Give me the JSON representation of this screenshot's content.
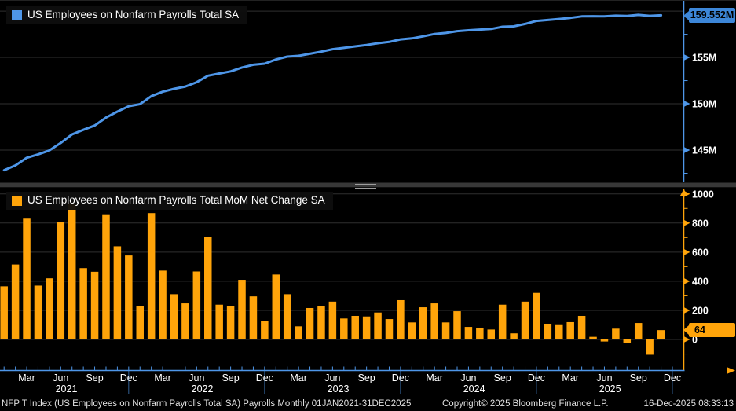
{
  "colors": {
    "background": "#000000",
    "grid": "#2f2f2f",
    "blue": "#4e96e8",
    "blue_badge": "#3d87d9",
    "orange": "#ffa40a",
    "text": "#ffffff",
    "footer_text": "#e2e2e2",
    "divider": "#383838"
  },
  "footer": {
    "source_line": "NFP T Index (US Employees on Nonfarm Payrolls Total SA) Payrolls Monthly 01JAN2021-31DEC2025",
    "copyright": "Copyright© 2025 Bloomberg Finance L.P.",
    "timestamp": "16-Dec-2025 08:33:13"
  },
  "chart_data": {
    "type": "multi-panel",
    "months": [
      "2021-01",
      "2021-02",
      "2021-03",
      "2021-04",
      "2021-05",
      "2021-06",
      "2021-07",
      "2021-08",
      "2021-09",
      "2021-10",
      "2021-11",
      "2021-12",
      "2022-01",
      "2022-02",
      "2022-03",
      "2022-04",
      "2022-05",
      "2022-06",
      "2022-07",
      "2022-08",
      "2022-09",
      "2022-10",
      "2022-11",
      "2022-12",
      "2023-01",
      "2023-02",
      "2023-03",
      "2023-04",
      "2023-05",
      "2023-06",
      "2023-07",
      "2023-08",
      "2023-09",
      "2023-10",
      "2023-11",
      "2023-12",
      "2024-01",
      "2024-02",
      "2024-03",
      "2024-04",
      "2024-05",
      "2024-06",
      "2024-07",
      "2024-08",
      "2024-09",
      "2024-10",
      "2024-11",
      "2024-12",
      "2025-01",
      "2025-02",
      "2025-03",
      "2025-04",
      "2025-05",
      "2025-06",
      "2025-07",
      "2025-08",
      "2025-09",
      "2025-10",
      "2025-11"
    ],
    "xaxis": {
      "month_labels": [
        "Mar",
        "Jun",
        "Sep",
        "Dec"
      ],
      "year_labels": [
        "2021",
        "2022",
        "2023",
        "2024",
        "2025"
      ]
    },
    "panels": [
      {
        "type": "line",
        "name": "US Employees on Nonfarm Payrolls Total SA",
        "unit": "millions",
        "last_value_label": "159.552M",
        "ylim": [
          141.5,
          161.1
        ],
        "gridlines": [
          160,
          155,
          150,
          145
        ],
        "yticks": [
          155,
          150,
          145
        ],
        "ytick_labels": [
          "155M",
          "150M",
          "145M"
        ],
        "minor_ticks": [
          157.5,
          152.5,
          147.5,
          142.5
        ],
        "values": [
          142.828,
          143.343,
          144.173,
          144.543,
          144.963,
          145.768,
          146.698,
          147.188,
          147.653,
          148.513,
          149.153,
          149.73,
          149.96,
          150.828,
          151.301,
          151.612,
          151.86,
          152.327,
          153.029,
          153.268,
          153.498,
          153.908,
          154.204,
          154.33,
          154.776,
          155.087,
          155.177,
          155.393,
          155.623,
          155.883,
          156.027,
          156.189,
          156.347,
          156.532,
          156.672,
          156.942,
          157.059,
          157.28,
          157.528,
          157.645,
          157.839,
          157.925,
          158.006,
          158.074,
          158.313,
          158.355,
          158.615,
          158.935,
          159.043,
          159.147,
          159.266,
          159.428,
          159.446,
          159.432,
          159.506,
          159.48,
          159.593,
          159.488,
          159.552
        ]
      },
      {
        "type": "bar",
        "name": "US Employees on Nonfarm Payrolls Total MoM Net Change SA",
        "unit": "thousands",
        "last_value_label": "64",
        "ylim": [
          -210,
          1036
        ],
        "gridlines": [
          1000,
          800,
          600,
          400,
          200,
          0
        ],
        "yticks": [
          1000,
          800,
          600,
          400,
          200,
          0
        ],
        "ytick_labels": [
          "1000",
          "800",
          "600",
          "400",
          "200",
          "0"
        ],
        "minor_ticks": [
          900,
          700,
          500,
          300,
          100,
          -100
        ],
        "values": [
          365,
          515,
          830,
          370,
          420,
          805,
          930,
          490,
          465,
          860,
          640,
          577,
          230,
          868,
          473,
          311,
          248,
          467,
          702,
          239,
          230,
          410,
          296,
          126,
          446,
          311,
          90,
          216,
          230,
          260,
          144,
          162,
          158,
          185,
          140,
          270,
          117,
          221,
          248,
          117,
          194,
          86,
          81,
          68,
          239,
          42,
          260,
          320,
          108,
          104,
          119,
          162,
          18,
          -14,
          74,
          -26,
          113,
          -105,
          64
        ]
      }
    ]
  }
}
